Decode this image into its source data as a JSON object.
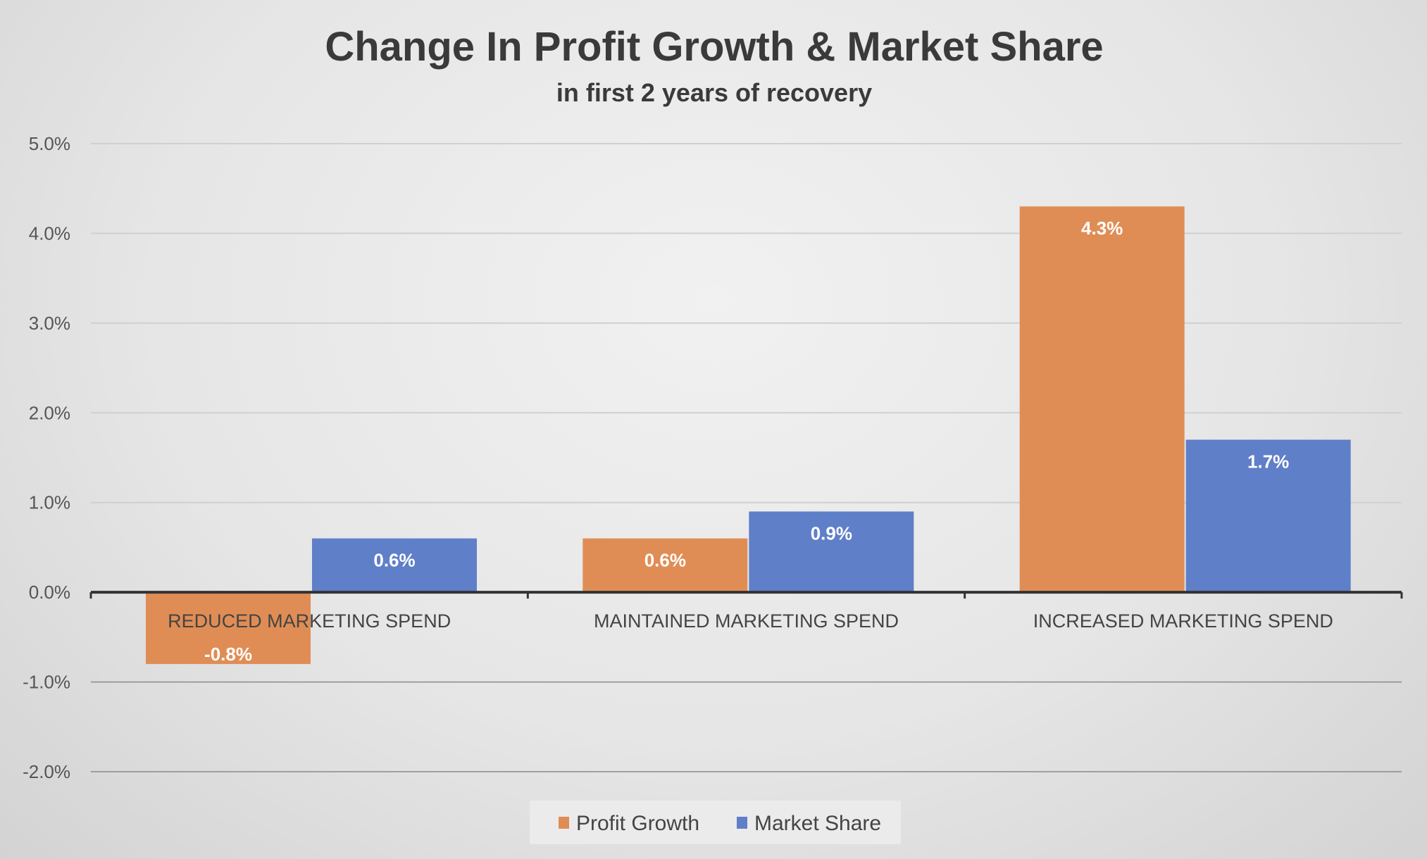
{
  "chart_data": {
    "type": "bar",
    "title": "Change In Profit Growth & Market Share",
    "subtitle": "in first 2 years of recovery",
    "categories": [
      "REDUCED MARKETING SPEND",
      "MAINTAINED MARKETING SPEND",
      "INCREASED MARKETING SPEND"
    ],
    "series": [
      {
        "name": "Profit Growth",
        "color": "#E08D55",
        "values": [
          -0.8,
          0.6,
          4.3
        ],
        "labels": [
          "-0.8%",
          "0.6%",
          "4.3%"
        ]
      },
      {
        "name": "Market Share",
        "color": "#5F7FC8",
        "values": [
          0.6,
          0.9,
          1.7
        ],
        "labels": [
          "0.6%",
          "0.9%",
          "1.7%"
        ]
      }
    ],
    "ylim": [
      -2.0,
      5.0
    ],
    "yticks": [
      5.0,
      4.0,
      3.0,
      2.0,
      1.0,
      0.0,
      -1.0,
      -2.0
    ],
    "ytick_labels": [
      "5.0%",
      "4.0%",
      "3.0%",
      "2.0%",
      "1.0%",
      "0.0%",
      "-1.0%",
      "-2.0%"
    ],
    "xlabel": "",
    "ylabel": "",
    "grid": true,
    "legend": "bottom"
  }
}
